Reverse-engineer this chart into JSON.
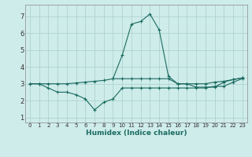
{
  "xlabel": "Humidex (Indice chaleur)",
  "background_color": "#ceecea",
  "grid_color": "#aed4d0",
  "line_color": "#1a6b60",
  "x_ticks": [
    0,
    1,
    2,
    3,
    4,
    5,
    6,
    7,
    8,
    9,
    10,
    11,
    12,
    13,
    14,
    15,
    16,
    17,
    18,
    19,
    20,
    21,
    22,
    23
  ],
  "y_ticks": [
    1,
    2,
    3,
    4,
    5,
    6,
    7
  ],
  "ylim": [
    0.7,
    7.7
  ],
  "xlim": [
    -0.5,
    23.5
  ],
  "series": [
    {
      "x": [
        0,
        1,
        2,
        3,
        4,
        5,
        6,
        7,
        8,
        9,
        10,
        11,
        12,
        13,
        14,
        15,
        16,
        17,
        18,
        19,
        20,
        21,
        22,
        23
      ],
      "y": [
        3.0,
        3.0,
        3.0,
        3.0,
        3.0,
        3.05,
        3.1,
        3.15,
        3.2,
        3.3,
        3.3,
        3.3,
        3.3,
        3.3,
        3.3,
        3.3,
        3.0,
        3.0,
        3.0,
        3.0,
        3.1,
        3.15,
        3.25,
        3.35
      ]
    },
    {
      "x": [
        0,
        1,
        2,
        3,
        4,
        5,
        6,
        7,
        8,
        9,
        10,
        11,
        12,
        13,
        14,
        15,
        16,
        17,
        18,
        19,
        20,
        21,
        22,
        23
      ],
      "y": [
        3.0,
        3.0,
        2.75,
        2.5,
        2.5,
        2.35,
        2.1,
        1.45,
        1.9,
        2.1,
        2.75,
        2.75,
        2.75,
        2.75,
        2.75,
        2.75,
        2.75,
        2.75,
        2.75,
        2.75,
        2.85,
        2.85,
        3.1,
        3.3
      ]
    },
    {
      "x": [
        9,
        10,
        11,
        12,
        13,
        14,
        15,
        16,
        17,
        18,
        19,
        20,
        21,
        22,
        23
      ],
      "y": [
        3.3,
        4.7,
        6.55,
        6.7,
        7.15,
        6.2,
        3.45,
        3.0,
        3.0,
        2.8,
        2.8,
        2.8,
        3.1,
        3.25,
        3.35
      ]
    }
  ]
}
